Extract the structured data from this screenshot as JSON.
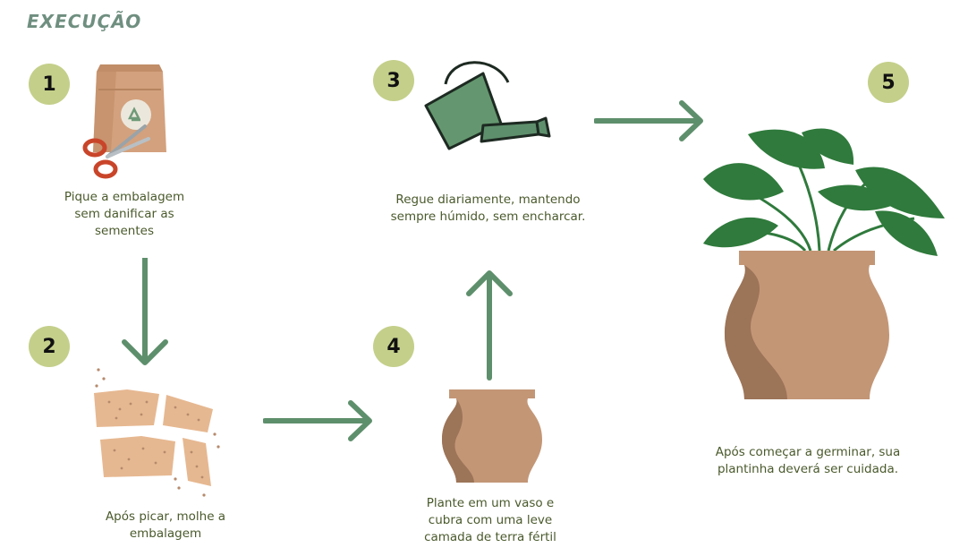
{
  "title": "EXECUÇÃO",
  "steps": [
    {
      "number": "1",
      "caption": "Pique a embalagem sem danificar as sementes"
    },
    {
      "number": "2",
      "caption": "Após picar, molhe a embalagem"
    },
    {
      "number": "3",
      "caption": "Regue diariamente, mantendo sempre húmido, sem encharcar."
    },
    {
      "number": "4",
      "caption": "Plante em um vaso e cubra com uma leve camada de terra fértil"
    },
    {
      "number": "5",
      "caption": "Após começar a germinar, sua plantinha deverá ser cuidada."
    }
  ],
  "colors": {
    "badge": "#c4cf8a",
    "arrow": "#5e8f6c",
    "pot": "#c39676",
    "pot_shadow": "#9c7458",
    "leaf": "#2f7a3c",
    "title": "#6f8f80",
    "caption": "#4a5a2c"
  },
  "icons": [
    "seed-bag-icon",
    "scissors-icon",
    "torn-paper-icon",
    "watering-can-icon",
    "pot-icon",
    "plant-icon",
    "arrow-icon"
  ]
}
